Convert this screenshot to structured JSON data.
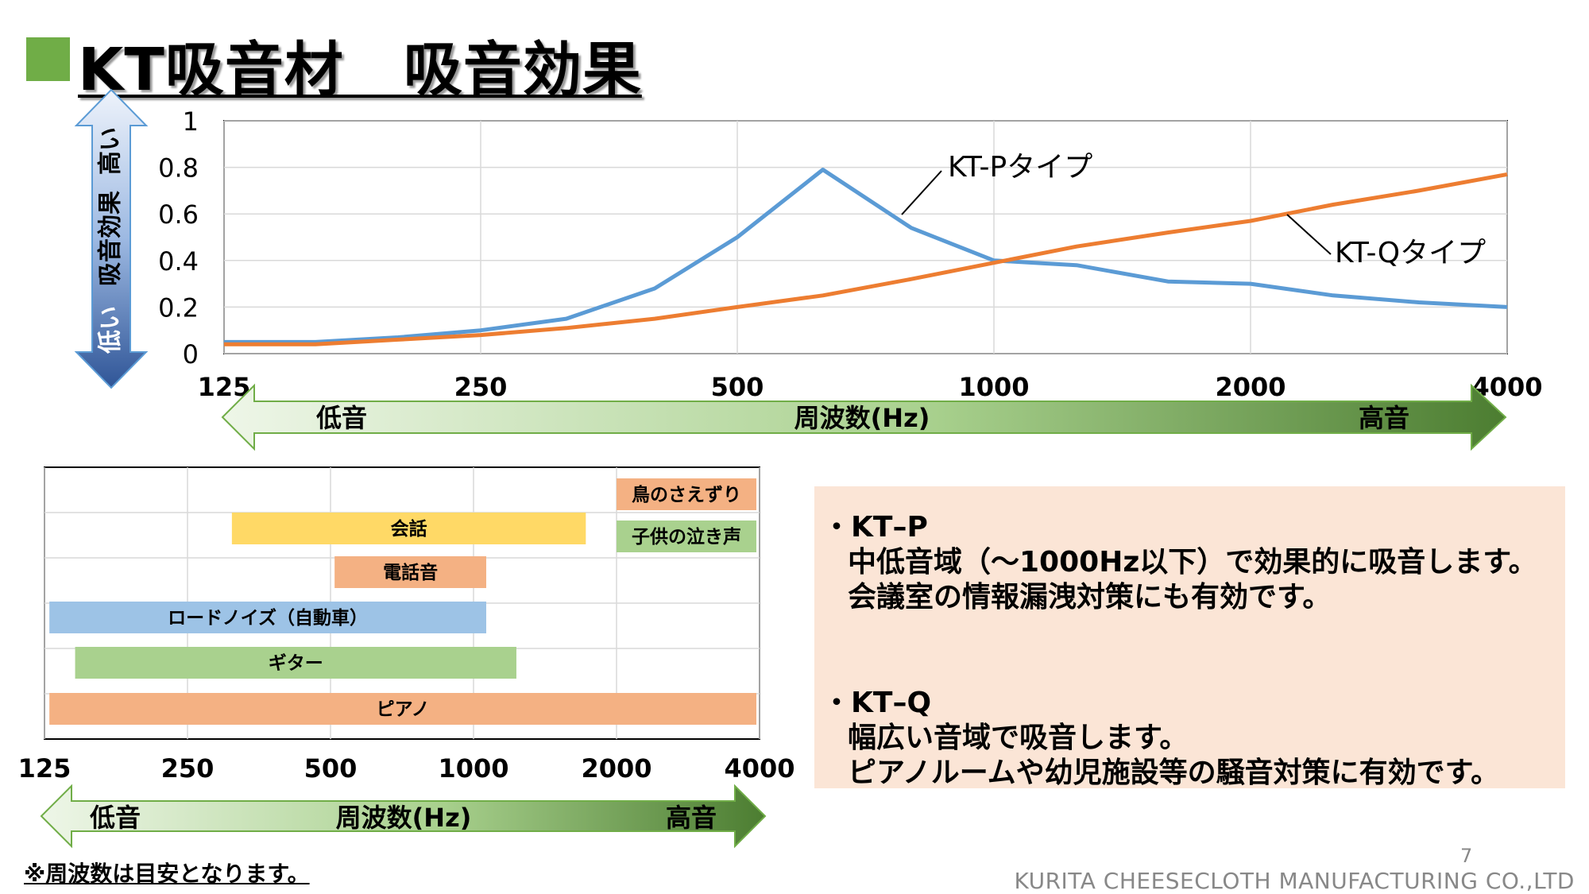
{
  "title": "KT吸音材　吸音効果",
  "top_chart": {
    "y_axis_arrow": {
      "high": "高い",
      "middle": "吸音効果",
      "low": "低い"
    },
    "y_ticks": [
      "0",
      "0.2",
      "0.4",
      "0.6",
      "0.8",
      "1"
    ],
    "x_ticks": [
      "125",
      "250",
      "500",
      "1000",
      "2000",
      "4000"
    ],
    "freq_arrow": {
      "low": "低音",
      "middle": "周波数(Hz)",
      "high": "高音"
    },
    "callouts": {
      "p": "KT-Pタイプ",
      "q": "KT-Qタイプ"
    }
  },
  "chart_data": [
    {
      "type": "line",
      "title": "",
      "xlabel": "周波数(Hz)",
      "ylabel": "吸音効果",
      "x_scale": "log2",
      "xlim": [
        125,
        4000
      ],
      "ylim": [
        0,
        1
      ],
      "grid": true,
      "series": [
        {
          "name": "KT-Pタイプ",
          "color": "#5b9bd5",
          "x": [
            125,
            160,
            200,
            250,
            315,
            400,
            500,
            630,
            800,
            1000,
            1250,
            1600,
            2000,
            2500,
            3150,
            4000
          ],
          "y": [
            0.05,
            0.05,
            0.07,
            0.1,
            0.15,
            0.28,
            0.5,
            0.79,
            0.54,
            0.4,
            0.38,
            0.31,
            0.3,
            0.25,
            0.22,
            0.2
          ]
        },
        {
          "name": "KT-Qタイプ",
          "color": "#ed7d31",
          "x": [
            125,
            160,
            200,
            250,
            315,
            400,
            500,
            630,
            800,
            1000,
            1250,
            1600,
            2000,
            2500,
            3150,
            4000
          ],
          "y": [
            0.04,
            0.04,
            0.06,
            0.08,
            0.11,
            0.15,
            0.2,
            0.25,
            0.32,
            0.39,
            0.46,
            0.52,
            0.57,
            0.64,
            0.7,
            0.77
          ]
        }
      ]
    },
    {
      "type": "bar",
      "title": "",
      "xlabel": "周波数(Hz)",
      "x_scale": "log2",
      "xlim": [
        125,
        4000
      ],
      "x_ticks": [
        "125",
        "250",
        "500",
        "1000",
        "2000",
        "4000"
      ],
      "grid": true,
      "freq_arrow": {
        "low": "低音",
        "middle": "周波数(Hz)",
        "high": "高音"
      },
      "ranges": [
        {
          "label": "鳥のさえずり",
          "from": 2000,
          "to": 4000,
          "color": "#f4b183"
        },
        {
          "label": "会話",
          "from": 310,
          "to": 1750,
          "color": "#ffd966"
        },
        {
          "label": "子供の泣き声",
          "from": 2000,
          "to": 4000,
          "color": "#a9d18e"
        },
        {
          "label": "電話音",
          "from": 510,
          "to": 1080,
          "color": "#f4b183"
        },
        {
          "label": "ロードノイズ（自動車）",
          "from": 128,
          "to": 1080,
          "color": "#9dc3e6"
        },
        {
          "label": "ギター",
          "from": 145,
          "to": 1250,
          "color": "#a9d18e"
        },
        {
          "label": "ピアノ",
          "from": 128,
          "to": 4000,
          "color": "#f4b183"
        }
      ]
    }
  ],
  "notes": {
    "p_heading": "・KT–P",
    "p_line1": "中低音域（～1000Hz以下）で効果的に吸音します。",
    "p_line2": "会議室の情報漏洩対策にも有効です。",
    "q_heading": "・KT–Q",
    "q_line1": "幅広い音域で吸音します。",
    "q_line2": "ピアノルームや幼児施設等の騒音対策に有効です。"
  },
  "footnote": "※周波数は目安となります。",
  "page_number": "7",
  "company": "KURITA CHEESECLOTH MANUFACTURING CO.,LTD"
}
